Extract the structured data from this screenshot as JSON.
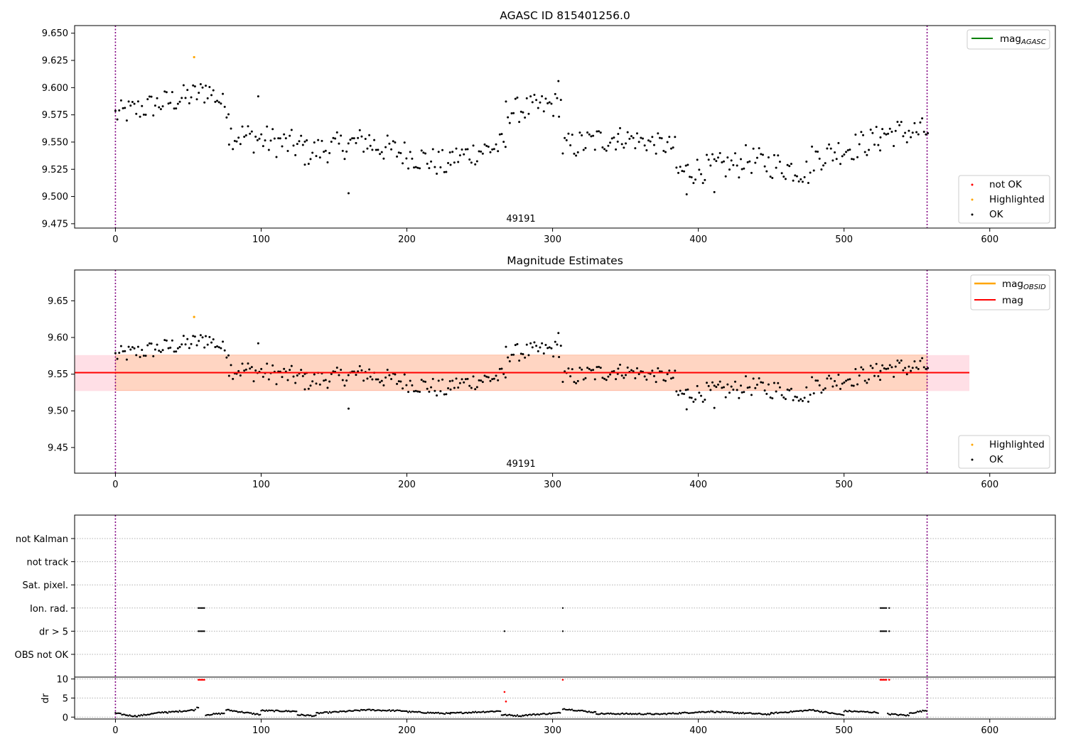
{
  "chart_data": [
    {
      "type": "scatter",
      "title": "AGASC ID 815401256.0",
      "annotation": "49191",
      "xlim": [
        -28,
        645
      ],
      "ylim": [
        9.471,
        9.657
      ],
      "xticks": [
        0,
        100,
        200,
        300,
        400,
        500,
        600
      ],
      "yticks": [
        9.475,
        9.5,
        9.525,
        9.55,
        9.575,
        9.6,
        9.625,
        9.65
      ],
      "ytick_decimals": 3,
      "vlines": [
        0,
        557
      ],
      "series": [
        {
          "name": "not OK",
          "color": "#ff0000",
          "points": []
        },
        {
          "name": "Highlighted",
          "color": "#ffa500",
          "points": [
            [
              54,
              9.628
            ]
          ]
        },
        {
          "name": "OK",
          "color": "#000000",
          "segments": [
            {
              "x0": 0,
              "x1": 62,
              "y0": 9.575,
              "y1": 9.596,
              "amp": 0.012,
              "step": 1.3
            },
            {
              "x0": 62,
              "x1": 78,
              "y0": 9.6,
              "y1": 9.58,
              "amp": 0.01,
              "step": 1.3
            },
            {
              "x0": 78,
              "x1": 130,
              "y0": 9.558,
              "y1": 9.545,
              "amp": 0.014,
              "step": 1.3
            },
            {
              "x0": 130,
              "x1": 175,
              "y0": 9.54,
              "y1": 9.552,
              "amp": 0.013,
              "step": 1.3
            },
            {
              "x0": 175,
              "x1": 230,
              "y0": 9.548,
              "y1": 9.528,
              "amp": 0.013,
              "step": 1.3
            },
            {
              "x0": 230,
              "x1": 268,
              "y0": 9.535,
              "y1": 9.548,
              "amp": 0.012,
              "step": 1.3
            },
            {
              "x0": 268,
              "x1": 306,
              "y0": 9.578,
              "y1": 9.585,
              "amp": 0.012,
              "step": 1.3
            },
            {
              "x0": 307,
              "x1": 345,
              "y0": 9.545,
              "y1": 9.555,
              "amp": 0.013,
              "step": 1.3
            },
            {
              "x0": 345,
              "x1": 385,
              "y0": 9.555,
              "y1": 9.545,
              "amp": 0.01,
              "step": 1.3
            },
            {
              "x0": 385,
              "x1": 430,
              "y0": 9.522,
              "y1": 9.53,
              "amp": 0.013,
              "step": 1.3
            },
            {
              "x0": 430,
              "x1": 478,
              "y0": 9.535,
              "y1": 9.522,
              "amp": 0.013,
              "step": 1.3
            },
            {
              "x0": 478,
              "x1": 525,
              "y0": 9.535,
              "y1": 9.553,
              "amp": 0.013,
              "step": 1.3
            },
            {
              "x0": 525,
              "x1": 558,
              "y0": 9.558,
              "y1": 9.56,
              "amp": 0.013,
              "step": 1.3
            }
          ],
          "extra": [
            [
              160,
              9.503
            ],
            [
              392,
              9.502
            ],
            [
              411,
              9.504
            ],
            [
              98,
              9.592
            ],
            [
              304,
              9.606
            ]
          ]
        }
      ],
      "line_legend": [
        {
          "label": "mag",
          "sub": "AGASC",
          "color": "#008000"
        }
      ],
      "marker_legend": [
        "not OK",
        "Highlighted",
        "OK"
      ]
    },
    {
      "type": "scatter",
      "title": "Magnitude Estimates",
      "annotation": "49191",
      "xlim": [
        -28,
        645
      ],
      "ylim": [
        9.415,
        9.692
      ],
      "xticks": [
        0,
        100,
        200,
        300,
        400,
        500,
        600
      ],
      "yticks": [
        9.45,
        9.5,
        9.55,
        9.6,
        9.65
      ],
      "ytick_decimals": 2,
      "vlines": [
        0,
        557
      ],
      "mag": {
        "value": 9.552,
        "band": [
          9.527,
          9.576
        ],
        "x": [
          -28,
          586
        ],
        "color": "#ff0000"
      },
      "mag_obsid": {
        "value": 9.552,
        "band": [
          9.528,
          9.576
        ],
        "x": [
          0,
          557
        ],
        "color": "#ffa500"
      },
      "series": [
        {
          "name": "Highlighted",
          "color": "#ffa500",
          "points": [
            [
              54,
              9.628
            ]
          ]
        },
        {
          "name": "OK",
          "color": "#000000",
          "same_as_panel": 0
        }
      ],
      "line_legend": [
        {
          "label": "mag",
          "sub": "OBSID",
          "color": "#ffa500"
        },
        {
          "label": "mag",
          "sub": "",
          "color": "#ff0000"
        }
      ],
      "marker_legend": [
        "Highlighted",
        "OK"
      ]
    },
    {
      "type": "scatter",
      "xlim": [
        -28,
        645
      ],
      "xticks": [
        0,
        100,
        200,
        300,
        400,
        500,
        600
      ],
      "vlines": [
        0,
        557
      ],
      "flag_rows": [
        "not Kalman",
        "not track",
        "Sat. pixel.",
        "Ion. rad.",
        "dr > 5",
        "OBS not OK"
      ],
      "flags": {
        "Ion. rad.": [
          57,
          58,
          59,
          60,
          61,
          307,
          525,
          526,
          527,
          528,
          529,
          531
        ],
        "dr > 5": [
          57,
          58,
          59,
          60,
          61,
          267,
          307,
          525,
          526,
          527,
          528,
          529,
          531
        ]
      },
      "dr": {
        "ylabel": "dr",
        "ylim": [
          -0.5,
          10.5
        ],
        "yticks": [
          0,
          5,
          10
        ],
        "red_points": [
          [
            57,
            9.8
          ],
          [
            58,
            9.8
          ],
          [
            59,
            9.8
          ],
          [
            60,
            9.8
          ],
          [
            61,
            9.8
          ],
          [
            267,
            6.6
          ],
          [
            268,
            4.1
          ],
          [
            307,
            9.8
          ],
          [
            525,
            9.8
          ],
          [
            526,
            9.8
          ],
          [
            527,
            9.8
          ],
          [
            528,
            9.8
          ],
          [
            529,
            9.8
          ],
          [
            531,
            9.8
          ]
        ],
        "black_segments": [
          {
            "x0": 0,
            "x1": 8,
            "y0": 1.0,
            "y1": 0.5
          },
          {
            "x0": 8,
            "x1": 15,
            "y0": 0.5,
            "y1": 0.2
          },
          {
            "x0": 15,
            "x1": 35,
            "y0": 0.3,
            "y1": 1.4
          },
          {
            "x0": 35,
            "x1": 55,
            "y0": 1.2,
            "y1": 1.9
          },
          {
            "x0": 56,
            "x1": 57,
            "y0": 2.7,
            "y1": 2.4
          },
          {
            "x0": 62,
            "x1": 75,
            "y0": 0.6,
            "y1": 1.0
          },
          {
            "x0": 76,
            "x1": 100,
            "y0": 1.9,
            "y1": 0.6
          },
          {
            "x0": 100,
            "x1": 125,
            "y0": 1.7,
            "y1": 1.5
          },
          {
            "x0": 125,
            "x1": 138,
            "y0": 0.6,
            "y1": 0.3
          },
          {
            "x0": 138,
            "x1": 170,
            "y0": 1.0,
            "y1": 1.8
          },
          {
            "x0": 170,
            "x1": 200,
            "y0": 1.9,
            "y1": 1.6
          },
          {
            "x0": 200,
            "x1": 230,
            "y0": 1.4,
            "y1": 0.9
          },
          {
            "x0": 230,
            "x1": 265,
            "y0": 1.0,
            "y1": 1.6
          },
          {
            "x0": 265,
            "x1": 280,
            "y0": 0.6,
            "y1": 0.3
          },
          {
            "x0": 280,
            "x1": 306,
            "y0": 0.5,
            "y1": 1.1
          },
          {
            "x0": 307,
            "x1": 330,
            "y0": 2.2,
            "y1": 1.2
          },
          {
            "x0": 330,
            "x1": 370,
            "y0": 0.9,
            "y1": 0.8
          },
          {
            "x0": 370,
            "x1": 410,
            "y0": 0.7,
            "y1": 1.5
          },
          {
            "x0": 410,
            "x1": 450,
            "y0": 1.4,
            "y1": 0.7
          },
          {
            "x0": 450,
            "x1": 480,
            "y0": 1.0,
            "y1": 1.9
          },
          {
            "x0": 480,
            "x1": 500,
            "y0": 1.7,
            "y1": 0.5
          },
          {
            "x0": 500,
            "x1": 524,
            "y0": 1.6,
            "y1": 1.2
          },
          {
            "x0": 530,
            "x1": 545,
            "y0": 0.8,
            "y1": 0.4
          },
          {
            "x0": 545,
            "x1": 557,
            "y0": 1.0,
            "y1": 1.8
          }
        ]
      }
    }
  ]
}
